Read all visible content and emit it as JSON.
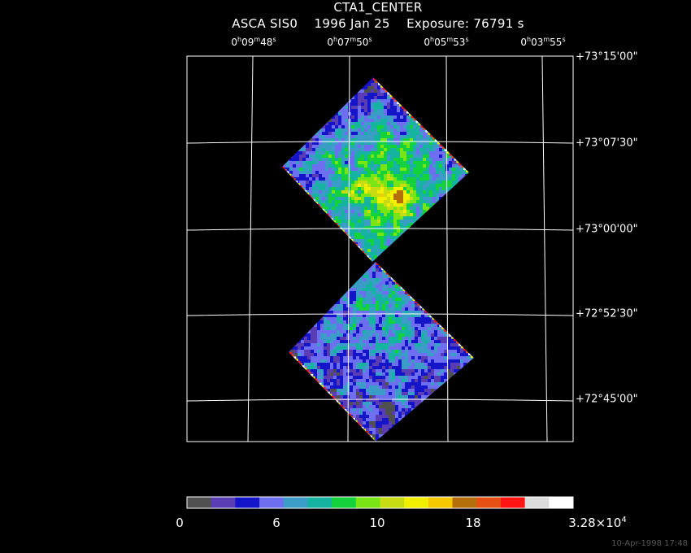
{
  "title": {
    "line1": "CTA1_CENTER",
    "mission": "ASCA SIS0",
    "date": "1996 Jan 25",
    "exposure": "Exposure: 76791 s"
  },
  "ra_labels": [
    {
      "h": "0",
      "m": "09",
      "s": "48"
    },
    {
      "h": "0",
      "m": "07",
      "s": "50"
    },
    {
      "h": "0",
      "m": "05",
      "s": "53"
    },
    {
      "h": "0",
      "m": "03",
      "s": "55"
    }
  ],
  "dec_labels": [
    "+73°15'00\"",
    "+73°07'30\"",
    "+73°00'00\"",
    "+72°52'30\"",
    "+72°45'00\""
  ],
  "colorbar": {
    "colors": [
      "#505050",
      "#5a3cb4",
      "#1414c8",
      "#6e6ef0",
      "#3c9cc8",
      "#14b4a0",
      "#14d23c",
      "#78e614",
      "#c8dc14",
      "#f0f000",
      "#f5c800",
      "#b46e0a",
      "#e65014",
      "#ff1414",
      "#dcdcdc",
      "#ffffff"
    ],
    "labels": [
      "0",
      "6",
      "10",
      "18"
    ],
    "max_label_mantissa": "3.28×10",
    "max_label_exp": "4"
  },
  "footer": "10-Apr-1998 17:48"
}
